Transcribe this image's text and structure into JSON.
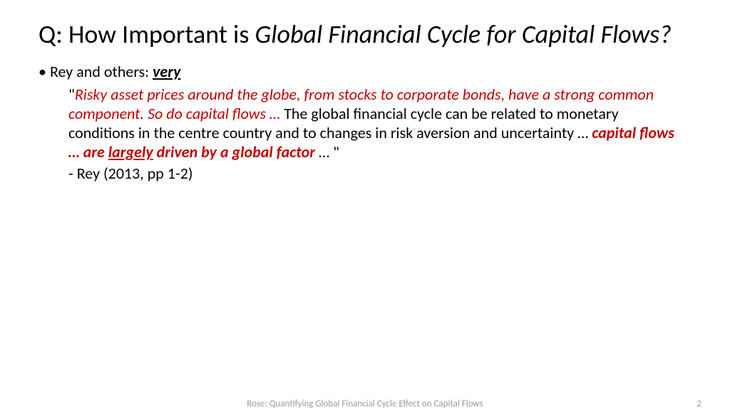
{
  "title": {
    "prefix": "Q: How Important is ",
    "italic": "Global Financial Cycle for Capital Flows?"
  },
  "bullet": {
    "lead": "Rey and others: ",
    "emph": "very"
  },
  "quote": {
    "open": "\"",
    "part1": "Risky asset prices around the globe, from stocks to corporate bonds, have a strong common component.  So do capital flows … ",
    "part2": "The global financial cycle can be related to monetary conditions in the centre country and to changes in risk aversion and uncertainty … ",
    "part3a": "capital flows … are ",
    "part3b": "largely",
    "part3c": " driven by a global factor",
    "part4": " … \""
  },
  "citation": "- Rey (2013, pp 1-2)",
  "footer": {
    "center": "Rose: Quantifying Global Financial Cycle Effect on Capital Flows",
    "page": "2"
  },
  "colors": {
    "text": "#000000",
    "red": "#c00000",
    "footer": "#9a9a9a",
    "background": "#ffffff"
  }
}
